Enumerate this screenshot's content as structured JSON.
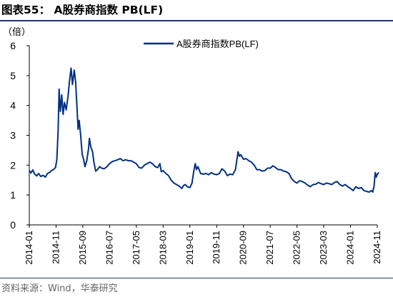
{
  "header": {
    "title": "图表55：  A股券商指数 PB(LF)"
  },
  "footer": {
    "source": "资料来源：Wind，华泰研究"
  },
  "chart_data": {
    "type": "line",
    "title": "",
    "ylabel": "（倍）",
    "xlabel": "",
    "ylim": [
      0,
      6
    ],
    "yticks": [
      0,
      1,
      2,
      3,
      4,
      5,
      6
    ],
    "x_range": [
      "2014-01",
      "2024-11"
    ],
    "xticks": [
      "2014-01",
      "2014-11",
      "2015-09",
      "2016-07",
      "2017-05",
      "2018-03",
      "2019-01",
      "2019-11",
      "2020-09",
      "2021-07",
      "2022-05",
      "2023-03",
      "2024-01",
      "2024-11"
    ],
    "grid": false,
    "legend_position": "top-center",
    "series": [
      {
        "name": "A股券商指数PB(LF)",
        "color": "#003083",
        "points": [
          [
            "2014-01-01",
            1.82
          ],
          [
            "2014-01-20",
            1.74
          ],
          [
            "2014-02-10",
            1.84
          ],
          [
            "2014-03-01",
            1.7
          ],
          [
            "2014-03-25",
            1.64
          ],
          [
            "2014-04-15",
            1.72
          ],
          [
            "2014-05-10",
            1.62
          ],
          [
            "2014-06-05",
            1.66
          ],
          [
            "2014-07-01",
            1.6
          ],
          [
            "2014-07-25",
            1.72
          ],
          [
            "2014-08-20",
            1.76
          ],
          [
            "2014-09-10",
            1.82
          ],
          [
            "2014-10-05",
            1.86
          ],
          [
            "2014-10-25",
            1.92
          ],
          [
            "2014-11-10",
            2.2
          ],
          [
            "2014-11-25",
            3.2
          ],
          [
            "2014-12-05",
            4.55
          ],
          [
            "2014-12-20",
            3.8
          ],
          [
            "2015-01-05",
            4.35
          ],
          [
            "2015-01-20",
            3.7
          ],
          [
            "2015-02-05",
            4.1
          ],
          [
            "2015-02-25",
            3.85
          ],
          [
            "2015-03-15",
            4.3
          ],
          [
            "2015-04-01",
            4.8
          ],
          [
            "2015-04-20",
            5.25
          ],
          [
            "2015-05-05",
            4.7
          ],
          [
            "2015-05-25",
            5.18
          ],
          [
            "2015-06-10",
            4.8
          ],
          [
            "2015-06-25",
            4.0
          ],
          [
            "2015-07-08",
            3.2
          ],
          [
            "2015-07-20",
            3.5
          ],
          [
            "2015-08-05",
            3.05
          ],
          [
            "2015-08-25",
            2.35
          ],
          [
            "2015-09-10",
            2.2
          ],
          [
            "2015-09-25",
            1.95
          ],
          [
            "2015-10-15",
            2.15
          ],
          [
            "2015-11-05",
            2.55
          ],
          [
            "2015-11-15",
            2.9
          ],
          [
            "2015-12-01",
            2.6
          ],
          [
            "2015-12-20",
            2.45
          ],
          [
            "2016-01-05",
            2.1
          ],
          [
            "2016-01-25",
            1.8
          ],
          [
            "2016-02-15",
            1.85
          ],
          [
            "2016-03-10",
            1.95
          ],
          [
            "2016-04-01",
            1.9
          ],
          [
            "2016-05-01",
            1.88
          ],
          [
            "2016-06-01",
            1.95
          ],
          [
            "2016-07-01",
            2.05
          ],
          [
            "2016-08-01",
            2.12
          ],
          [
            "2016-09-01",
            2.15
          ],
          [
            "2016-10-01",
            2.18
          ],
          [
            "2016-11-01",
            2.22
          ],
          [
            "2016-12-01",
            2.15
          ],
          [
            "2017-01-01",
            2.18
          ],
          [
            "2017-02-01",
            2.15
          ],
          [
            "2017-03-01",
            2.15
          ],
          [
            "2017-04-01",
            2.1
          ],
          [
            "2017-05-01",
            2.05
          ],
          [
            "2017-06-01",
            1.92
          ],
          [
            "2017-07-01",
            1.9
          ],
          [
            "2017-08-01",
            2.0
          ],
          [
            "2017-09-01",
            2.05
          ],
          [
            "2017-10-01",
            2.1
          ],
          [
            "2017-11-01",
            2.05
          ],
          [
            "2017-12-01",
            1.95
          ],
          [
            "2018-01-01",
            1.92
          ],
          [
            "2018-01-25",
            2.05
          ],
          [
            "2018-02-10",
            1.78
          ],
          [
            "2018-03-01",
            1.82
          ],
          [
            "2018-04-01",
            1.72
          ],
          [
            "2018-05-01",
            1.65
          ],
          [
            "2018-06-01",
            1.5
          ],
          [
            "2018-07-01",
            1.4
          ],
          [
            "2018-08-01",
            1.35
          ],
          [
            "2018-09-01",
            1.3
          ],
          [
            "2018-10-01",
            1.22
          ],
          [
            "2018-10-20",
            1.32
          ],
          [
            "2018-11-10",
            1.35
          ],
          [
            "2018-12-01",
            1.28
          ],
          [
            "2019-01-01",
            1.25
          ],
          [
            "2019-01-25",
            1.4
          ],
          [
            "2019-02-15",
            1.8
          ],
          [
            "2019-03-01",
            2.05
          ],
          [
            "2019-03-15",
            1.85
          ],
          [
            "2019-04-01",
            1.95
          ],
          [
            "2019-05-01",
            1.72
          ],
          [
            "2019-06-01",
            1.7
          ],
          [
            "2019-07-01",
            1.72
          ],
          [
            "2019-08-01",
            1.68
          ],
          [
            "2019-09-01",
            1.75
          ],
          [
            "2019-10-01",
            1.7
          ],
          [
            "2019-11-01",
            1.68
          ],
          [
            "2019-12-01",
            1.72
          ],
          [
            "2020-01-01",
            1.88
          ],
          [
            "2020-02-01",
            1.8
          ],
          [
            "2020-03-01",
            1.65
          ],
          [
            "2020-04-01",
            1.7
          ],
          [
            "2020-05-01",
            1.68
          ],
          [
            "2020-06-01",
            1.85
          ],
          [
            "2020-07-01",
            2.45
          ],
          [
            "2020-07-15",
            2.3
          ],
          [
            "2020-08-01",
            2.35
          ],
          [
            "2020-09-01",
            2.2
          ],
          [
            "2020-10-01",
            2.22
          ],
          [
            "2020-11-01",
            2.15
          ],
          [
            "2020-12-01",
            2.1
          ],
          [
            "2021-01-01",
            2.0
          ],
          [
            "2021-02-01",
            1.85
          ],
          [
            "2021-03-01",
            1.85
          ],
          [
            "2021-04-01",
            1.8
          ],
          [
            "2021-05-01",
            1.82
          ],
          [
            "2021-06-01",
            1.9
          ],
          [
            "2021-07-01",
            1.9
          ],
          [
            "2021-08-01",
            1.98
          ],
          [
            "2021-09-01",
            1.92
          ],
          [
            "2021-10-01",
            1.85
          ],
          [
            "2021-11-01",
            1.85
          ],
          [
            "2021-12-01",
            1.8
          ],
          [
            "2022-01-01",
            1.78
          ],
          [
            "2022-02-01",
            1.72
          ],
          [
            "2022-03-01",
            1.55
          ],
          [
            "2022-04-01",
            1.45
          ],
          [
            "2022-05-01",
            1.4
          ],
          [
            "2022-06-01",
            1.48
          ],
          [
            "2022-07-01",
            1.45
          ],
          [
            "2022-08-01",
            1.4
          ],
          [
            "2022-09-01",
            1.33
          ],
          [
            "2022-10-01",
            1.28
          ],
          [
            "2022-11-01",
            1.35
          ],
          [
            "2022-12-01",
            1.36
          ],
          [
            "2023-01-01",
            1.42
          ],
          [
            "2023-02-01",
            1.38
          ],
          [
            "2023-03-01",
            1.35
          ],
          [
            "2023-04-01",
            1.4
          ],
          [
            "2023-05-01",
            1.38
          ],
          [
            "2023-06-01",
            1.35
          ],
          [
            "2023-07-01",
            1.42
          ],
          [
            "2023-08-01",
            1.45
          ],
          [
            "2023-09-01",
            1.35
          ],
          [
            "2023-10-01",
            1.3
          ],
          [
            "2023-11-01",
            1.35
          ],
          [
            "2023-12-01",
            1.28
          ],
          [
            "2024-01-01",
            1.22
          ],
          [
            "2024-02-01",
            1.15
          ],
          [
            "2024-03-01",
            1.28
          ],
          [
            "2024-04-01",
            1.22
          ],
          [
            "2024-05-01",
            1.25
          ],
          [
            "2024-06-01",
            1.15
          ],
          [
            "2024-07-01",
            1.12
          ],
          [
            "2024-08-01",
            1.1
          ],
          [
            "2024-08-25",
            1.15
          ],
          [
            "2024-09-10",
            1.1
          ],
          [
            "2024-09-25",
            1.3
          ],
          [
            "2024-10-08",
            1.75
          ],
          [
            "2024-10-20",
            1.6
          ],
          [
            "2024-11-01",
            1.7
          ],
          [
            "2024-11-20",
            1.75
          ]
        ]
      }
    ]
  }
}
